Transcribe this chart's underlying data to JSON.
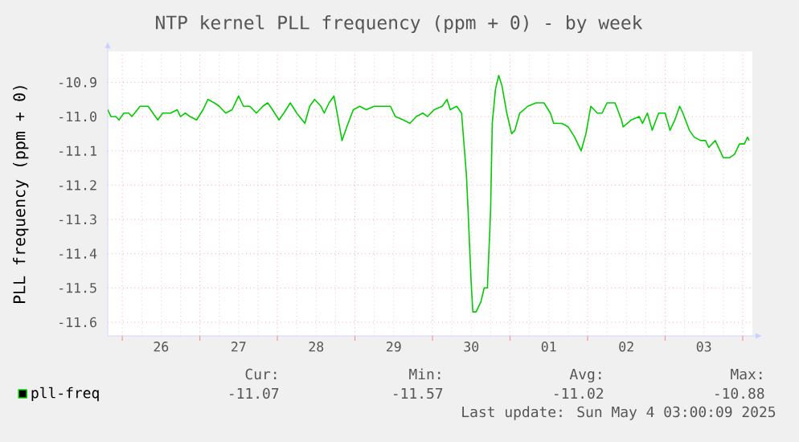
{
  "chart_data": {
    "type": "line",
    "title": "NTP kernel PLL frequency (ppm + 0) - by week",
    "ylabel": "PLL frequency (ppm + 0)",
    "xlim": [
      "2025-04-25T19:30",
      "2025-05-04T03:00"
    ],
    "ylim": [
      -11.64,
      -10.81
    ],
    "xticks": [
      {
        "value": "2025-04-26T00:00",
        "label": null
      },
      {
        "value": "2025-04-27T00:00",
        "label": null
      },
      {
        "value": "2025-04-28T00:00",
        "label": null
      },
      {
        "value": "2025-04-29T00:00",
        "label": null
      },
      {
        "value": "2025-04-30T00:00",
        "label": null
      },
      {
        "value": "2025-05-01T00:00",
        "label": null
      },
      {
        "value": "2025-05-02T00:00",
        "label": null
      },
      {
        "value": "2025-05-03T00:00",
        "label": null
      },
      {
        "value": "2025-05-04T00:00",
        "label": null
      },
      {
        "value": "2025-04-26T12:00",
        "label": "26"
      },
      {
        "value": "2025-04-27T12:00",
        "label": "27"
      },
      {
        "value": "2025-04-28T12:00",
        "label": "28"
      },
      {
        "value": "2025-04-29T12:00",
        "label": "29"
      },
      {
        "value": "2025-04-30T12:00",
        "label": "30"
      },
      {
        "value": "2025-05-01T12:00",
        "label": "01"
      },
      {
        "value": "2025-05-02T12:00",
        "label": "02"
      },
      {
        "value": "2025-05-03T12:00",
        "label": "03"
      }
    ],
    "yticks": [
      {
        "value": -10.9,
        "label": "-10.9"
      },
      {
        "value": -11.0,
        "label": "-11.0"
      },
      {
        "value": -11.1,
        "label": "-11.1"
      },
      {
        "value": -11.2,
        "label": "-11.2"
      },
      {
        "value": -11.3,
        "label": "-11.3"
      },
      {
        "value": -11.4,
        "label": "-11.4"
      },
      {
        "value": -11.5,
        "label": "-11.5"
      },
      {
        "value": -11.6,
        "label": "-11.6"
      }
    ],
    "grid": true,
    "legend": "bottom left",
    "series": [
      {
        "name": "pll-freq",
        "color": "#00cc00",
        "x": [
          "2025-04-25T19:30",
          "2025-04-25T20:30",
          "2025-04-25T22:00",
          "2025-04-25T23:00",
          "2025-04-26T00:30",
          "2025-04-26T02:00",
          "2025-04-26T03:00",
          "2025-04-26T05:30",
          "2025-04-26T08:00",
          "2025-04-26T09:30",
          "2025-04-26T11:00",
          "2025-04-26T12:30",
          "2025-04-26T15:00",
          "2025-04-26T17:00",
          "2025-04-26T18:00",
          "2025-04-26T19:30",
          "2025-04-26T21:00",
          "2025-04-26T23:00",
          "2025-04-27T01:00",
          "2025-04-27T02:30",
          "2025-04-27T04:30",
          "2025-04-27T06:00",
          "2025-04-27T08:00",
          "2025-04-27T10:00",
          "2025-04-27T12:00",
          "2025-04-27T13:30",
          "2025-04-27T15:30",
          "2025-04-27T17:30",
          "2025-04-27T19:30",
          "2025-04-27T21:00",
          "2025-04-27T22:30",
          "2025-04-28T00:30",
          "2025-04-28T02:00",
          "2025-04-28T04:00",
          "2025-04-28T06:00",
          "2025-04-28T08:30",
          "2025-04-28T10:00",
          "2025-04-28T11:30",
          "2025-04-28T13:30",
          "2025-04-28T14:30",
          "2025-04-28T16:00",
          "2025-04-28T17:30",
          "2025-04-28T18:30",
          "2025-04-28T20:00",
          "2025-04-28T21:30",
          "2025-04-28T23:30",
          "2025-04-29T01:30",
          "2025-04-29T03:30",
          "2025-04-29T06:00",
          "2025-04-29T08:00",
          "2025-04-29T11:00",
          "2025-04-29T12:30",
          "2025-04-29T15:00",
          "2025-04-29T17:00",
          "2025-04-29T19:00",
          "2025-04-29T21:00",
          "2025-04-29T22:30",
          "2025-04-30T00:30",
          "2025-04-30T03:00",
          "2025-04-30T04:30",
          "2025-04-30T05:30",
          "2025-04-30T07:30",
          "2025-04-30T09:00",
          "2025-04-30T10:30",
          "2025-04-30T11:00",
          "2025-04-30T12:00",
          "2025-04-30T12:30",
          "2025-04-30T13:30",
          "2025-04-30T15:00",
          "2025-04-30T16:00",
          "2025-04-30T17:00",
          "2025-04-30T18:00",
          "2025-04-30T18:30",
          "2025-04-30T19:30",
          "2025-04-30T20:30",
          "2025-04-30T21:30",
          "2025-04-30T23:00",
          "2025-05-01T00:30",
          "2025-05-01T01:30",
          "2025-05-01T03:00",
          "2025-05-01T05:30",
          "2025-05-01T08:00",
          "2025-05-01T10:30",
          "2025-05-01T12:30",
          "2025-05-01T13:30",
          "2025-05-01T16:00",
          "2025-05-01T18:00",
          "2025-05-01T20:00",
          "2025-05-01T22:00",
          "2025-05-01T23:30",
          "2025-05-02T01:00",
          "2025-05-02T03:00",
          "2025-05-02T04:30",
          "2025-05-02T06:00",
          "2025-05-02T08:30",
          "2025-05-02T10:30",
          "2025-05-02T11:00",
          "2025-05-02T13:30",
          "2025-05-02T16:00",
          "2025-05-02T17:00",
          "2025-05-02T18:30",
          "2025-05-02T20:00",
          "2025-05-02T22:00",
          "2025-05-03T00:00",
          "2025-05-03T01:30",
          "2025-05-03T03:00",
          "2025-05-03T04:30",
          "2025-05-03T05:30",
          "2025-05-03T07:30",
          "2025-05-03T09:00",
          "2025-05-03T11:00",
          "2025-05-03T12:30",
          "2025-05-03T13:30",
          "2025-05-03T15:30",
          "2025-05-03T17:00",
          "2025-05-03T18:00",
          "2025-05-03T20:00",
          "2025-05-03T21:30",
          "2025-05-03T23:00",
          "2025-05-04T00:30",
          "2025-05-04T01:30",
          "2025-05-04T02:00"
        ],
        "values": [
          -10.98,
          -11.0,
          -11.0,
          -11.01,
          -10.99,
          -10.99,
          -11.0,
          -10.97,
          -10.97,
          -10.99,
          -11.01,
          -10.99,
          -10.99,
          -10.98,
          -11.0,
          -10.99,
          -11.0,
          -11.01,
          -10.98,
          -10.95,
          -10.96,
          -10.97,
          -10.99,
          -10.98,
          -10.94,
          -10.97,
          -10.97,
          -10.99,
          -10.97,
          -10.96,
          -10.98,
          -11.01,
          -10.99,
          -10.96,
          -10.99,
          -11.02,
          -10.97,
          -10.95,
          -10.97,
          -10.99,
          -10.96,
          -10.94,
          -10.99,
          -11.07,
          -11.03,
          -10.98,
          -10.97,
          -10.98,
          -10.97,
          -10.97,
          -10.97,
          -11.0,
          -11.01,
          -11.02,
          -11.0,
          -10.99,
          -11.0,
          -10.98,
          -10.97,
          -10.95,
          -10.98,
          -10.97,
          -10.99,
          -11.17,
          -11.27,
          -11.49,
          -11.57,
          -11.57,
          -11.54,
          -11.5,
          -11.5,
          -11.27,
          -11.02,
          -10.92,
          -10.88,
          -10.91,
          -10.99,
          -11.05,
          -11.04,
          -10.99,
          -10.97,
          -10.96,
          -10.96,
          -10.99,
          -11.02,
          -11.02,
          -11.03,
          -11.06,
          -11.1,
          -11.05,
          -10.97,
          -10.99,
          -10.99,
          -10.96,
          -10.96,
          -11.01,
          -11.03,
          -11.01,
          -11.0,
          -11.02,
          -10.99,
          -11.04,
          -10.99,
          -10.99,
          -11.04,
          -11.01,
          -10.97,
          -10.99,
          -11.04,
          -11.06,
          -11.07,
          -11.07,
          -11.09,
          -11.07,
          -11.1,
          -11.12,
          -11.12,
          -11.11,
          -11.08,
          -11.08,
          -11.06,
          -11.07
        ]
      }
    ],
    "annotations": [
      "Cur:",
      "-11.07",
      "Min:",
      "-11.57",
      "Avg:",
      "-11.02",
      "Max:",
      "-10.88",
      "Last update: Sun May  4 03:00:09 2025"
    ]
  }
}
